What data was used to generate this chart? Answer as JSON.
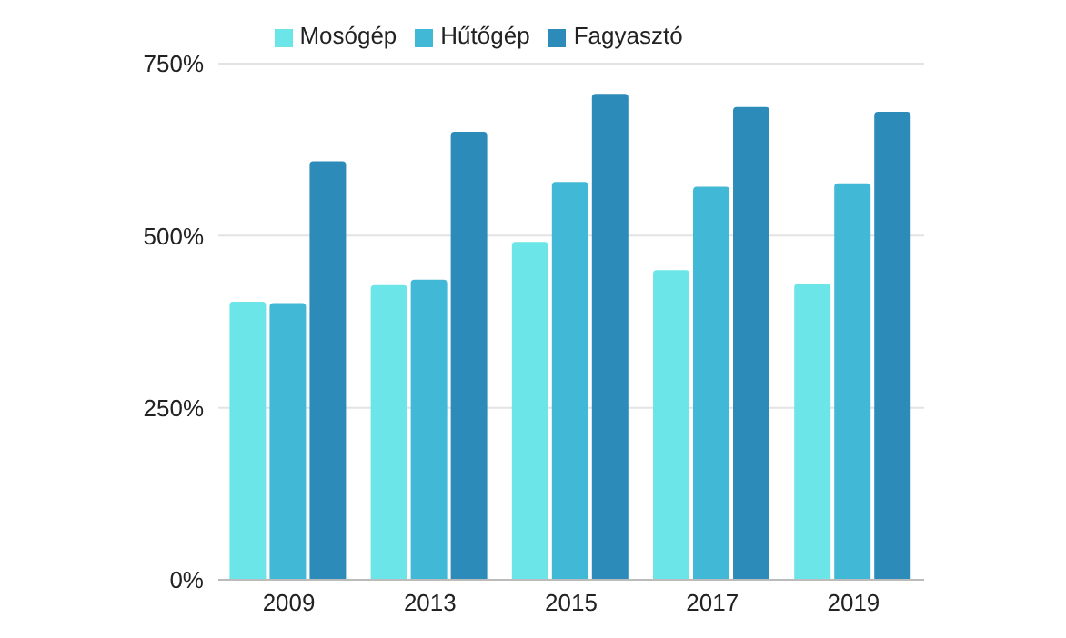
{
  "chart_data": {
    "type": "bar",
    "categories": [
      "2009",
      "2013",
      "2015",
      "2017",
      "2019"
    ],
    "series": [
      {
        "name": "Mosógép",
        "color": "#6ce5e8",
        "values": [
          404,
          428,
          491,
          450,
          430
        ]
      },
      {
        "name": "Hűtőgép",
        "color": "#41b8d5",
        "values": [
          402,
          436,
          578,
          571,
          576
        ]
      },
      {
        "name": "Fagyasztó",
        "color": "#2d8bba",
        "values": [
          608,
          651,
          706,
          687,
          680
        ]
      }
    ],
    "ylim": [
      0,
      750
    ],
    "yticks": [
      {
        "value": 0,
        "label": "0%"
      },
      {
        "value": 250,
        "label": "250%"
      },
      {
        "value": 500,
        "label": "500%"
      },
      {
        "value": 750,
        "label": "750%"
      }
    ],
    "grid": "y",
    "legend": "top"
  }
}
